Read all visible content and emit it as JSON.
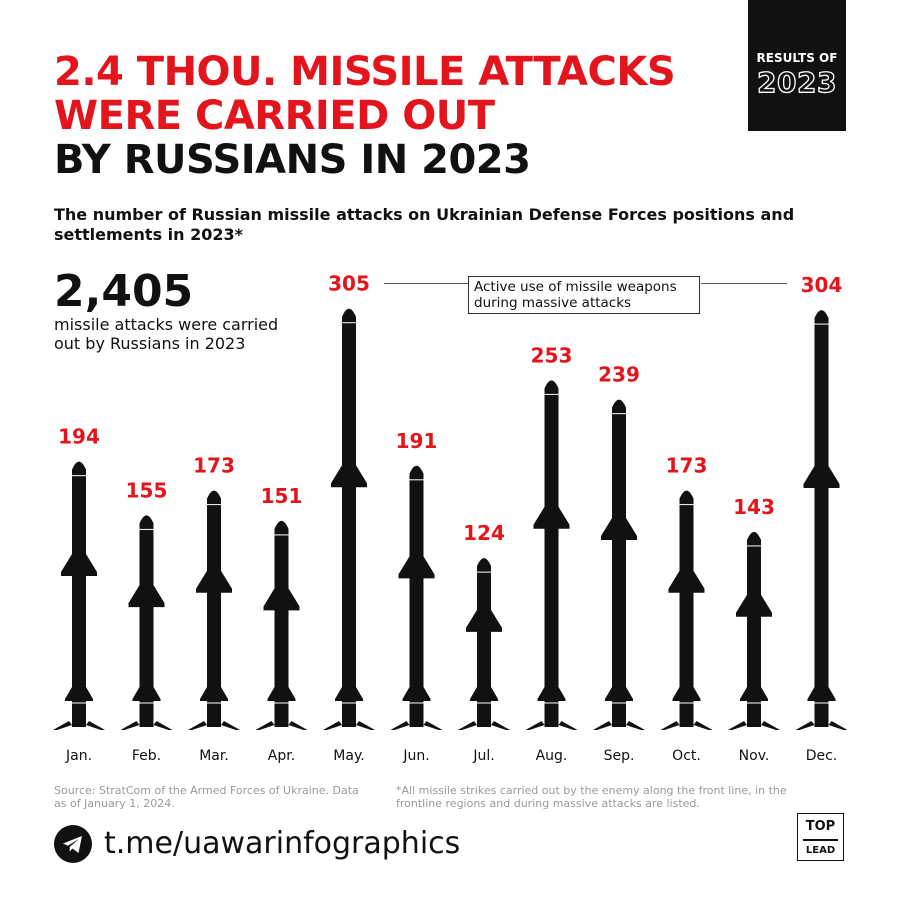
{
  "header": {
    "title_red_line1": "2.4 THOU. MISSILE ATTACKS",
    "title_red_line2": "WERE CARRIED OUT",
    "title_black_line3": "BY RUSSIANS IN 2023",
    "badge_line1": "RESULTS OF",
    "badge_line2": "2023",
    "subtitle": "The number of Russian missile attacks on Ukrainian Defense Forces positions and settlements in 2023*"
  },
  "summary": {
    "total": "2,405",
    "description": "missile attacks were carried out by Russians in 2023"
  },
  "annotation": "Active use of missile weapons during massive attacks",
  "chart_data": {
    "type": "bar",
    "categories": [
      "Jan.",
      "Feb.",
      "Mar.",
      "Apr.",
      "May.",
      "Jun.",
      "Jul.",
      "Aug.",
      "Sep.",
      "Oct.",
      "Nov.",
      "Dec."
    ],
    "values": [
      194,
      155,
      173,
      151,
      305,
      191,
      124,
      253,
      239,
      173,
      143,
      304
    ],
    "value_labels": [
      "194",
      "155",
      "173",
      "151",
      "305",
      "191",
      "124",
      "253",
      "239",
      "173",
      "143",
      "304"
    ],
    "mark": "missile pictogram",
    "colors": {
      "label": "#e3141b",
      "mark": "#111111"
    },
    "annotated_categories": [
      "May.",
      "Dec."
    ]
  },
  "footer": {
    "source": "Source: StratCom of the Armed Forces of Ukraine. Data as of January 1, 2024.",
    "footnote": "*All missile strikes carried out by the enemy along the front line, in the frontline regions and during massive attacks are listed.",
    "link": "t.me/uawarinfographics",
    "logo_top": "TOP",
    "logo_bottom": "LEAD",
    "icon": "telegram-icon"
  }
}
